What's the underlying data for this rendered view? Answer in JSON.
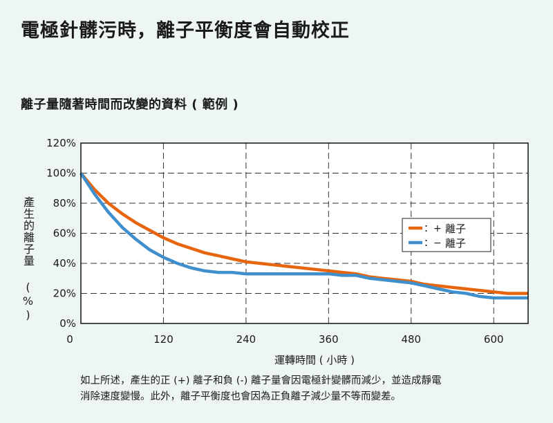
{
  "title": "電極針髒污時，離子平衡度會自動校正",
  "caption_lines": [
    "如上所述，產生的正 (+) 離子和負 (-) 離子量會因電極針變髒而減少，並造成靜電",
    "消除速度變慢。此外，離子平衡度也會因為正負離子減少量不等而變差。"
  ],
  "colors": {
    "background": "#eef6f3",
    "plot_background": "#ffffff",
    "positive": "#e8650f",
    "negative": "#3f8fcc",
    "grid": "#333333"
  },
  "chart_data": {
    "type": "line",
    "title": "離子量隨著時間而改變的資料 ( 範例 )",
    "xlabel": "運轉時間 ( 小時 )",
    "ylabel": "產生的離子量 (%)",
    "xlim": [
      0,
      650
    ],
    "ylim": [
      0,
      120
    ],
    "xticks": [
      0,
      120,
      240,
      360,
      480,
      600
    ],
    "yticks": [
      0,
      20,
      40,
      60,
      80,
      100,
      120
    ],
    "ytick_labels": [
      "0%",
      "20%",
      "40%",
      "60%",
      "80%",
      "100%",
      "120%"
    ],
    "grid": true,
    "legend_position": "right",
    "series": [
      {
        "name": "+ 離子",
        "legend_marker": "：+",
        "legend_text": "離子",
        "color": "#e8650f",
        "x": [
          0,
          20,
          40,
          60,
          80,
          100,
          120,
          140,
          160,
          180,
          200,
          220,
          240,
          260,
          280,
          300,
          320,
          340,
          360,
          380,
          400,
          420,
          440,
          460,
          480,
          500,
          520,
          540,
          560,
          580,
          600,
          620,
          650
        ],
        "y": [
          100,
          89,
          80,
          73,
          67,
          62,
          57,
          53,
          50,
          47,
          45,
          43,
          41,
          40,
          39,
          38,
          37,
          36,
          35,
          34,
          33,
          31,
          30,
          29,
          28,
          26,
          25,
          24,
          23,
          22,
          21,
          20,
          20
        ]
      },
      {
        "name": "− 離子",
        "legend_marker": "：−",
        "legend_text": "離子",
        "color": "#3f8fcc",
        "x": [
          0,
          20,
          40,
          60,
          80,
          100,
          120,
          140,
          160,
          180,
          200,
          220,
          240,
          260,
          280,
          300,
          320,
          340,
          360,
          380,
          400,
          420,
          440,
          460,
          480,
          500,
          520,
          540,
          560,
          580,
          600,
          620,
          650
        ],
        "y": [
          100,
          86,
          74,
          64,
          56,
          49,
          44,
          40,
          37,
          35,
          34,
          34,
          33,
          33,
          33,
          33,
          33,
          33,
          33,
          32,
          32,
          30,
          29,
          28,
          27,
          25,
          23,
          21,
          20,
          18,
          17,
          17,
          17
        ]
      }
    ]
  }
}
